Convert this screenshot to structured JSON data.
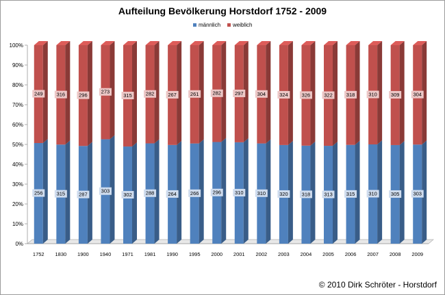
{
  "chart_data": {
    "type": "bar",
    "stacked": "percent",
    "title": "Aufteilung Bevölkerung Horstdorf 1752 - 2009",
    "categories": [
      "1752",
      "1830",
      "1900",
      "1940",
      "1971",
      "1981",
      "1990",
      "1995",
      "2000",
      "2001",
      "2002",
      "2003",
      "2004",
      "2005",
      "2006",
      "2007",
      "2008",
      "2009"
    ],
    "series": [
      {
        "name": "männlich",
        "color": "#4f81bd",
        "values": [
          256,
          315,
          287,
          303,
          302,
          288,
          264,
          266,
          296,
          310,
          310,
          320,
          318,
          313,
          315,
          310,
          305,
          303
        ]
      },
      {
        "name": "weiblich",
        "color": "#c0504d",
        "values": [
          249,
          316,
          296,
          273,
          315,
          282,
          267,
          261,
          282,
          297,
          304,
          324,
          326,
          322,
          318,
          310,
          309,
          304
        ]
      }
    ],
    "yticks": [
      "0%",
      "10%",
      "20%",
      "30%",
      "40%",
      "50%",
      "60%",
      "70%",
      "80%",
      "90%",
      "100%"
    ],
    "ylim": [
      0,
      100
    ],
    "grid": false,
    "legend_position": "top"
  },
  "footer": {
    "copyright": "© 2010 Dirk Schröter - Horstdorf"
  }
}
